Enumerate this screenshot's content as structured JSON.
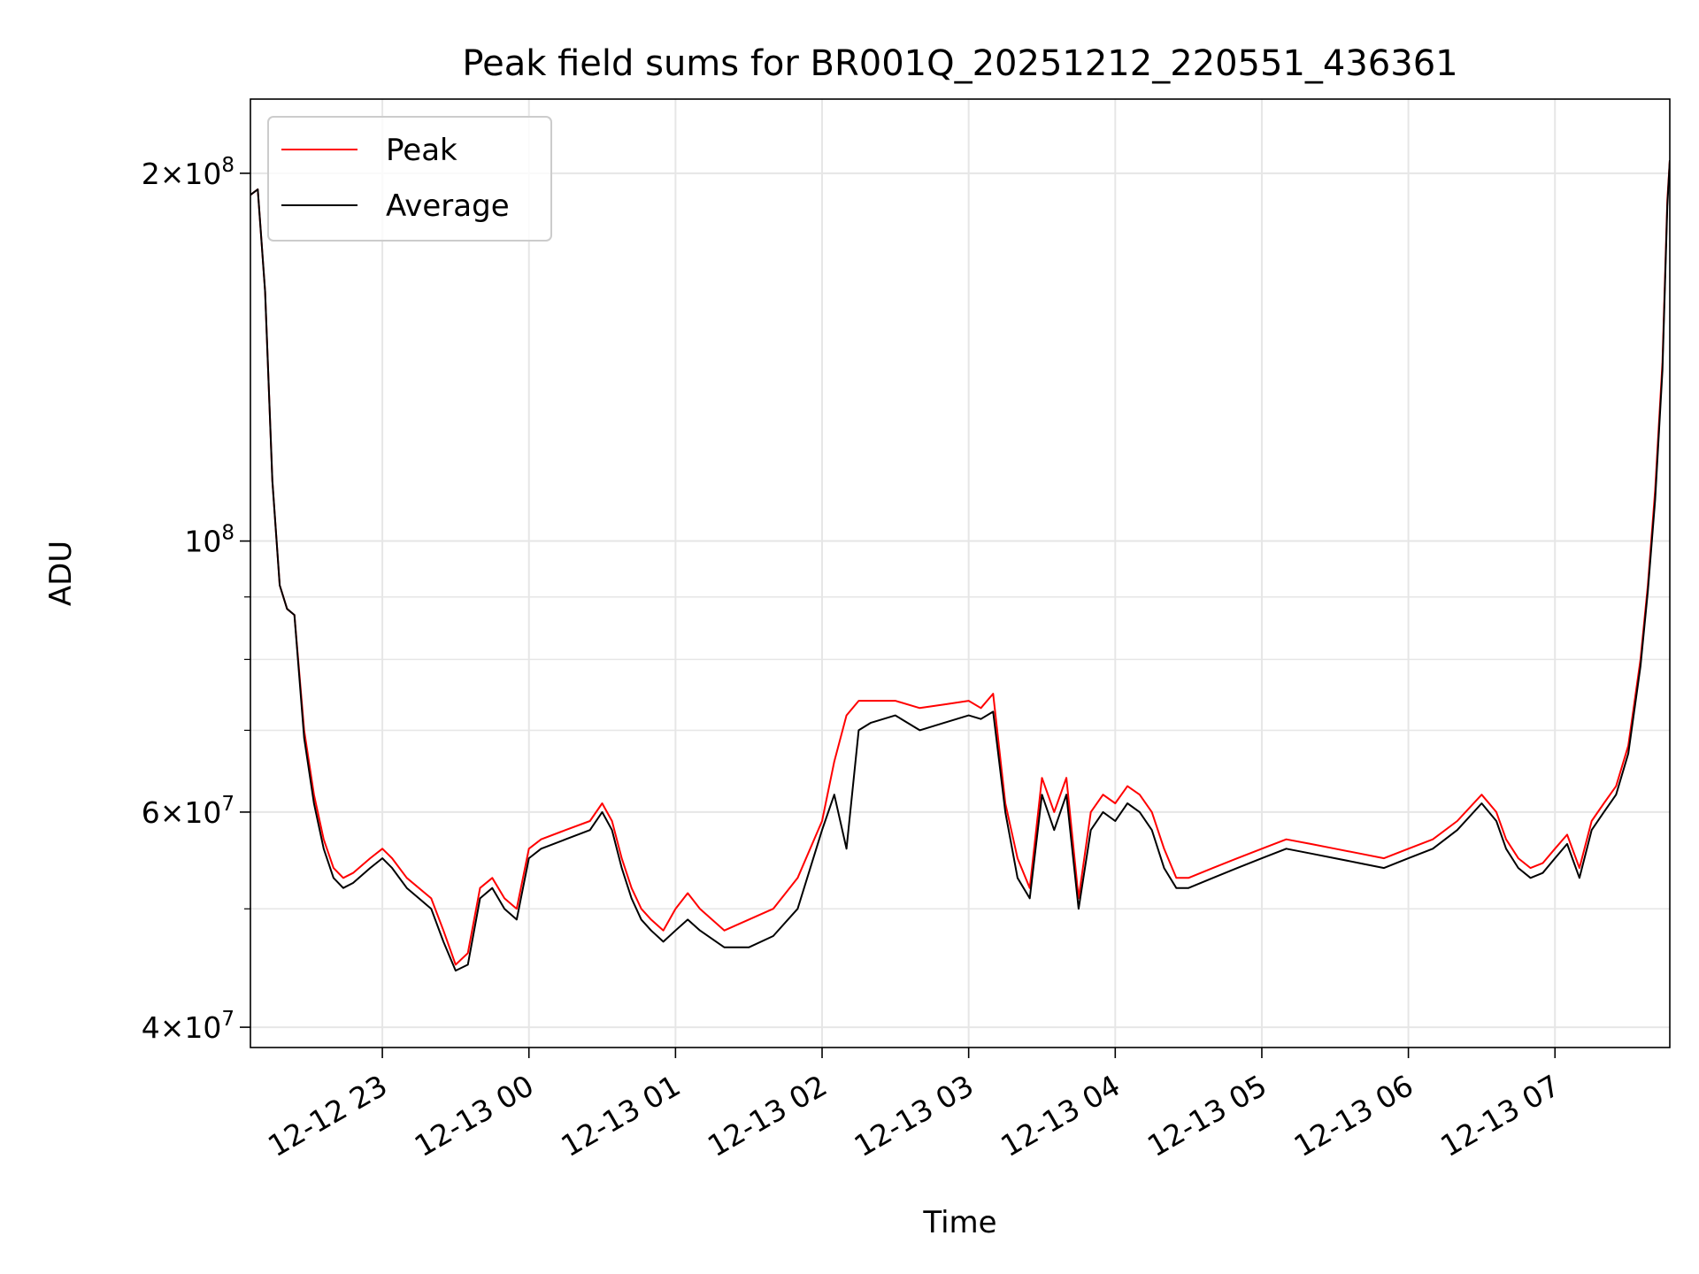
{
  "chart_data": {
    "type": "line",
    "title": "Peak field sums for BR001Q_20251212_220551_436361",
    "xlabel": "Time",
    "ylabel": "ADU",
    "yscale": "log",
    "ylim": [
      38500000,
      230000000
    ],
    "xlim": [
      "2025-12-12 22:06",
      "2025-12-13 07:47"
    ],
    "grid": true,
    "legend_position": "upper-left",
    "x_ticks": [
      {
        "t": "2025-12-12 23:00",
        "label": "12-12 23"
      },
      {
        "t": "2025-12-13 00:00",
        "label": "12-13 00"
      },
      {
        "t": "2025-12-13 01:00",
        "label": "12-13 01"
      },
      {
        "t": "2025-12-13 02:00",
        "label": "12-13 02"
      },
      {
        "t": "2025-12-13 03:00",
        "label": "12-13 03"
      },
      {
        "t": "2025-12-13 04:00",
        "label": "12-13 04"
      },
      {
        "t": "2025-12-13 05:00",
        "label": "12-13 05"
      },
      {
        "t": "2025-12-13 06:00",
        "label": "12-13 06"
      },
      {
        "t": "2025-12-13 07:00",
        "label": "12-13 07"
      }
    ],
    "y_ticks": [
      {
        "value": 40000000,
        "mant": "4",
        "exp": "7"
      },
      {
        "value": 60000000,
        "mant": "6",
        "exp": "7"
      },
      {
        "value": 100000000,
        "mant": "",
        "exp": "8"
      },
      {
        "value": 200000000,
        "mant": "2",
        "exp": "8"
      }
    ],
    "y_minor_ticks": [
      50000000,
      70000000,
      80000000,
      90000000
    ],
    "series": [
      {
        "name": "Peak",
        "color": "#ff0000",
        "x": [
          "2025-12-12 22:06",
          "2025-12-12 22:09",
          "2025-12-12 22:12",
          "2025-12-12 22:15",
          "2025-12-12 22:18",
          "2025-12-12 22:21",
          "2025-12-12 22:24",
          "2025-12-12 22:28",
          "2025-12-12 22:32",
          "2025-12-12 22:36",
          "2025-12-12 22:40",
          "2025-12-12 22:44",
          "2025-12-12 22:48",
          "2025-12-12 22:55",
          "2025-12-12 23:00",
          "2025-12-12 23:02",
          "2025-12-12 23:04",
          "2025-12-12 23:10",
          "2025-12-12 23:20",
          "2025-12-12 23:25",
          "2025-12-12 23:30",
          "2025-12-12 23:35",
          "2025-12-12 23:40",
          "2025-12-12 23:45",
          "2025-12-12 23:50",
          "2025-12-12 23:55",
          "2025-12-13 00:00",
          "2025-12-13 00:05",
          "2025-12-13 00:15",
          "2025-12-13 00:25",
          "2025-12-13 00:30",
          "2025-12-13 00:34",
          "2025-12-13 00:38",
          "2025-12-13 00:42",
          "2025-12-13 00:46",
          "2025-12-13 00:50",
          "2025-12-13 00:55",
          "2025-12-13 01:00",
          "2025-12-13 01:05",
          "2025-12-13 01:10",
          "2025-12-13 01:20",
          "2025-12-13 01:30",
          "2025-12-13 01:40",
          "2025-12-13 01:50",
          "2025-12-13 02:00",
          "2025-12-13 02:05",
          "2025-12-13 02:10",
          "2025-12-13 02:15",
          "2025-12-13 02:20",
          "2025-12-13 02:30",
          "2025-12-13 02:40",
          "2025-12-13 02:50",
          "2025-12-13 03:00",
          "2025-12-13 03:05",
          "2025-12-13 03:10",
          "2025-12-13 03:15",
          "2025-12-13 03:20",
          "2025-12-13 03:25",
          "2025-12-13 03:30",
          "2025-12-13 03:35",
          "2025-12-13 03:40",
          "2025-12-13 03:45",
          "2025-12-13 03:50",
          "2025-12-13 03:55",
          "2025-12-13 04:00",
          "2025-12-13 04:05",
          "2025-12-13 04:10",
          "2025-12-13 04:15",
          "2025-12-13 04:20",
          "2025-12-13 04:25",
          "2025-12-13 04:30",
          "2025-12-13 04:40",
          "2025-12-13 04:50",
          "2025-12-13 05:00",
          "2025-12-13 05:10",
          "2025-12-13 05:20",
          "2025-12-13 05:30",
          "2025-12-13 05:40",
          "2025-12-13 05:50",
          "2025-12-13 06:00",
          "2025-12-13 06:10",
          "2025-12-13 06:20",
          "2025-12-13 06:30",
          "2025-12-13 06:36",
          "2025-12-13 06:40",
          "2025-12-13 06:45",
          "2025-12-13 06:50",
          "2025-12-13 06:55",
          "2025-12-13 07:00",
          "2025-12-13 07:05",
          "2025-12-13 07:10",
          "2025-12-13 07:15",
          "2025-12-13 07:20",
          "2025-12-13 07:25",
          "2025-12-13 07:30",
          "2025-12-13 07:35",
          "2025-12-13 07:38",
          "2025-12-13 07:41",
          "2025-12-13 07:44",
          "2025-12-13 07:46",
          "2025-12-13 07:47"
        ],
        "values": [
          192000000,
          194000000,
          160000000,
          112000000,
          92000000,
          88000000,
          87000000,
          70000000,
          62000000,
          57000000,
          54000000,
          53000000,
          53500000,
          55000000,
          56000000,
          55500000,
          55000000,
          53000000,
          51000000,
          48000000,
          45000000,
          46000000,
          52000000,
          53000000,
          51000000,
          50000000,
          56000000,
          57000000,
          58000000,
          59000000,
          61000000,
          59000000,
          55000000,
          52000000,
          50000000,
          49000000,
          48000000,
          50000000,
          51500000,
          50000000,
          48000000,
          49000000,
          50000000,
          53000000,
          59000000,
          66000000,
          72000000,
          74000000,
          74000000,
          74000000,
          73000000,
          73500000,
          74000000,
          73000000,
          75000000,
          61000000,
          55000000,
          52000000,
          64000000,
          60000000,
          64000000,
          51000000,
          60000000,
          62000000,
          61000000,
          63000000,
          62000000,
          60000000,
          56000000,
          53000000,
          53000000,
          54000000,
          55000000,
          56000000,
          57000000,
          56500000,
          56000000,
          55500000,
          55000000,
          56000000,
          57000000,
          59000000,
          62000000,
          60000000,
          57000000,
          55000000,
          54000000,
          54500000,
          56000000,
          57500000,
          54000000,
          59000000,
          61000000,
          63000000,
          68000000,
          80000000,
          92000000,
          110000000,
          140000000,
          190000000,
          205000000
        ]
      },
      {
        "name": "Average",
        "color": "#000000",
        "x": [
          "2025-12-12 22:06",
          "2025-12-12 22:09",
          "2025-12-12 22:12",
          "2025-12-12 22:15",
          "2025-12-12 22:18",
          "2025-12-12 22:21",
          "2025-12-12 22:24",
          "2025-12-12 22:28",
          "2025-12-12 22:32",
          "2025-12-12 22:36",
          "2025-12-12 22:40",
          "2025-12-12 22:44",
          "2025-12-12 22:48",
          "2025-12-12 22:55",
          "2025-12-12 23:00",
          "2025-12-12 23:02",
          "2025-12-12 23:04",
          "2025-12-12 23:10",
          "2025-12-12 23:20",
          "2025-12-12 23:25",
          "2025-12-12 23:30",
          "2025-12-12 23:35",
          "2025-12-12 23:40",
          "2025-12-12 23:45",
          "2025-12-12 23:50",
          "2025-12-12 23:55",
          "2025-12-13 00:00",
          "2025-12-13 00:05",
          "2025-12-13 00:15",
          "2025-12-13 00:25",
          "2025-12-13 00:30",
          "2025-12-13 00:34",
          "2025-12-13 00:38",
          "2025-12-13 00:42",
          "2025-12-13 00:46",
          "2025-12-13 00:50",
          "2025-12-13 00:55",
          "2025-12-13 01:00",
          "2025-12-13 01:05",
          "2025-12-13 01:10",
          "2025-12-13 01:20",
          "2025-12-13 01:30",
          "2025-12-13 01:40",
          "2025-12-13 01:50",
          "2025-12-13 02:00",
          "2025-12-13 02:05",
          "2025-12-13 02:10",
          "2025-12-13 02:15",
          "2025-12-13 02:20",
          "2025-12-13 02:30",
          "2025-12-13 02:40",
          "2025-12-13 02:50",
          "2025-12-13 03:00",
          "2025-12-13 03:05",
          "2025-12-13 03:10",
          "2025-12-13 03:15",
          "2025-12-13 03:20",
          "2025-12-13 03:25",
          "2025-12-13 03:30",
          "2025-12-13 03:35",
          "2025-12-13 03:40",
          "2025-12-13 03:45",
          "2025-12-13 03:50",
          "2025-12-13 03:55",
          "2025-12-13 04:00",
          "2025-12-13 04:05",
          "2025-12-13 04:10",
          "2025-12-13 04:15",
          "2025-12-13 04:20",
          "2025-12-13 04:25",
          "2025-12-13 04:30",
          "2025-12-13 04:40",
          "2025-12-13 04:50",
          "2025-12-13 05:00",
          "2025-12-13 05:10",
          "2025-12-13 05:20",
          "2025-12-13 05:30",
          "2025-12-13 05:40",
          "2025-12-13 05:50",
          "2025-12-13 06:00",
          "2025-12-13 06:10",
          "2025-12-13 06:20",
          "2025-12-13 06:30",
          "2025-12-13 06:36",
          "2025-12-13 06:40",
          "2025-12-13 06:45",
          "2025-12-13 06:50",
          "2025-12-13 06:55",
          "2025-12-13 07:00",
          "2025-12-13 07:05",
          "2025-12-13 07:10",
          "2025-12-13 07:15",
          "2025-12-13 07:20",
          "2025-12-13 07:25",
          "2025-12-13 07:30",
          "2025-12-13 07:35",
          "2025-12-13 07:38",
          "2025-12-13 07:41",
          "2025-12-13 07:44",
          "2025-12-13 07:46",
          "2025-12-13 07:47"
        ],
        "values": [
          192000000,
          194000000,
          160000000,
          112000000,
          92000000,
          88000000,
          87000000,
          69000000,
          61000000,
          56000000,
          53000000,
          52000000,
          52500000,
          54000000,
          55000000,
          54500000,
          54000000,
          52000000,
          50000000,
          47000000,
          44500000,
          45000000,
          51000000,
          52000000,
          50000000,
          49000000,
          55000000,
          56000000,
          57000000,
          58000000,
          60000000,
          58000000,
          54000000,
          51000000,
          49000000,
          48000000,
          47000000,
          48000000,
          49000000,
          48000000,
          46500000,
          46500000,
          47500000,
          50000000,
          58000000,
          62000000,
          56000000,
          70000000,
          71000000,
          72000000,
          70000000,
          71000000,
          72000000,
          71500000,
          72500000,
          60000000,
          53000000,
          51000000,
          62000000,
          58000000,
          62000000,
          50000000,
          58000000,
          60000000,
          59000000,
          61000000,
          60000000,
          58000000,
          54000000,
          52000000,
          52000000,
          53000000,
          54000000,
          55000000,
          56000000,
          55500000,
          55000000,
          54500000,
          54000000,
          55000000,
          56000000,
          58000000,
          61000000,
          59000000,
          56000000,
          54000000,
          53000000,
          53500000,
          55000000,
          56500000,
          53000000,
          58000000,
          60000000,
          62000000,
          67000000,
          79000000,
          91000000,
          108000000,
          138000000,
          188000000,
          205000000
        ]
      }
    ]
  }
}
